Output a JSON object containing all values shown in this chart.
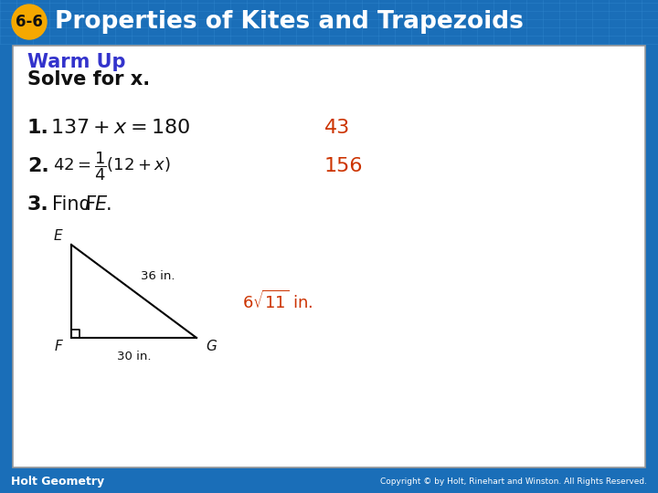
{
  "title_badge_text": "6-6",
  "title_main_text": "Properties of Kites and Trapezoids",
  "header_bg_color": "#1a6eb8",
  "header_text_color": "#ffffff",
  "badge_bg_color": "#f5a800",
  "badge_text_color": "#111111",
  "body_bg_color": "#ffffff",
  "body_border_color": "#999999",
  "warm_up_color": "#3333cc",
  "warm_up_text": "Warm Up",
  "subtitle_text": "Solve for x.",
  "item1_label": "1.",
  "item1_equation": "137 + x = 180",
  "item1_answer": "43",
  "item2_label": "2.",
  "item3_label": "3.",
  "item3_text": "Find ",
  "item3_italic": "FE",
  "item3_period": ".",
  "answer_color": "#cc3300",
  "item2_answer": "156",
  "footer_bg_color": "#1a6eb8",
  "footer_left_text": "Holt Geometry",
  "footer_right_text": "Copyright © by Holt, Rinehart and Winston. All Rights Reserved.",
  "footer_text_color": "#ffffff",
  "tri_label_36": "36 in.",
  "tri_label_30": "30 in.",
  "tri_E": "E",
  "tri_F": "F",
  "tri_G": "G"
}
